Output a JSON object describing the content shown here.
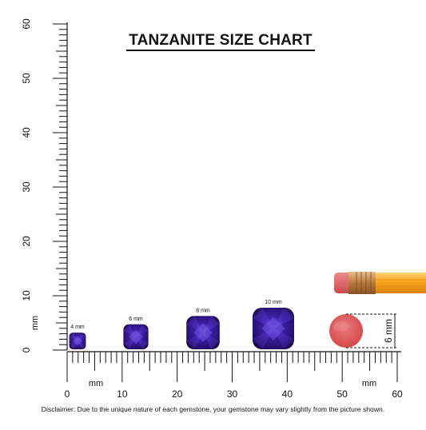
{
  "title": "TANZANITE SIZE CHART",
  "disclaimer": "Disclaimer: Due to the unique nature of each gemstone, your gemstone may vary slightly from the picture shown.",
  "ruler": {
    "unit": "mm",
    "vertical_labels": [
      "0",
      "10",
      "20",
      "30",
      "40",
      "50",
      "60"
    ],
    "horizontal_labels": [
      "0",
      "10",
      "20",
      "30",
      "40",
      "50",
      "60"
    ]
  },
  "gems": [
    {
      "label": "4 mm",
      "size_mm": 4
    },
    {
      "label": "6 mm",
      "size_mm": 6
    },
    {
      "label": "8 mm",
      "size_mm": 8
    },
    {
      "label": "10 mm",
      "size_mm": 10
    }
  ],
  "eraser": {
    "dimension_label": "6 mm",
    "size_mm": 6
  },
  "colors": {
    "gem_dark": "#1f0f5c",
    "gem_mid": "#3d1fa0",
    "gem_light": "#6a4be0",
    "eraser": "#e05a5c",
    "pencil_body": "#f5a21b",
    "pencil_ferrule": "#c8894a",
    "ruler_line": "#111111"
  },
  "icons": [
    "pencil-icon",
    "eraser-icon",
    "gem-icon"
  ]
}
